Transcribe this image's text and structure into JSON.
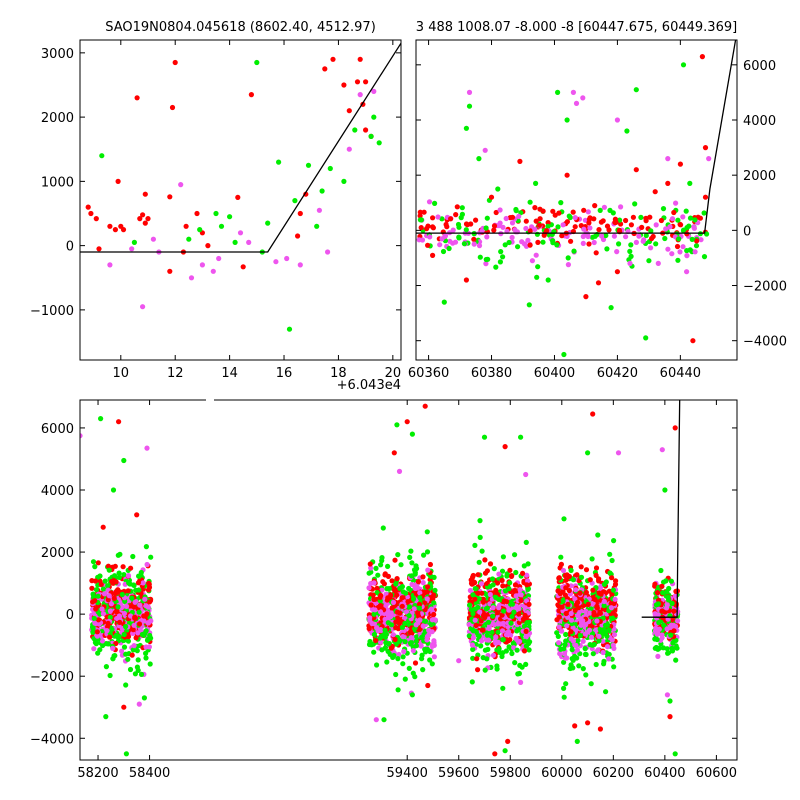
{
  "chart_data": [
    {
      "id": "top-left",
      "type": "scatter",
      "title": "SAO19N0804.045618 (8602.40, 4512.97)",
      "xlim": [
        8.5,
        20.3
      ],
      "ylim": [
        -1780,
        3200
      ],
      "x_offset_text": "+6.043e4",
      "x_ticks": [
        10,
        12,
        14,
        16,
        18,
        20
      ],
      "y_ticks": [
        -1000,
        0,
        1000,
        2000,
        3000
      ],
      "y_ticks_side": "left",
      "model_line": {
        "x": [
          8.5,
          15.4,
          20.3
        ],
        "y": [
          -100,
          -100,
          3150
        ]
      },
      "series": [
        {
          "color": "#ff0000",
          "points": [
            [
              8.8,
              600
            ],
            [
              8.9,
              500
            ],
            [
              9.1,
              420
            ],
            [
              9.2,
              -50
            ],
            [
              9.6,
              300
            ],
            [
              9.8,
              250
            ],
            [
              9.9,
              1000
            ],
            [
              10.0,
              300
            ],
            [
              10.1,
              250
            ],
            [
              10.6,
              2300
            ],
            [
              10.7,
              420
            ],
            [
              10.8,
              480
            ],
            [
              10.9,
              800
            ],
            [
              10.9,
              350
            ],
            [
              11.0,
              420
            ],
            [
              11.8,
              760
            ],
            [
              11.9,
              2150
            ],
            [
              12.0,
              2850
            ],
            [
              11.8,
              -400
            ],
            [
              12.3,
              -100
            ],
            [
              12.4,
              300
            ],
            [
              12.8,
              500
            ],
            [
              13.0,
              200
            ],
            [
              13.2,
              0
            ],
            [
              14.3,
              750
            ],
            [
              14.5,
              -330
            ],
            [
              14.8,
              2350
            ],
            [
              16.5,
              150
            ],
            [
              16.6,
              500
            ],
            [
              16.8,
              800
            ],
            [
              17.5,
              2750
            ],
            [
              17.8,
              2900
            ],
            [
              18.2,
              2500
            ],
            [
              18.4,
              2100
            ],
            [
              18.7,
              2550
            ],
            [
              18.9,
              2200
            ],
            [
              19.0,
              2550
            ],
            [
              18.8,
              2900
            ],
            [
              19.0,
              1800
            ],
            [
              19.2,
              1700
            ]
          ]
        },
        {
          "color": "#00ee00",
          "points": [
            [
              9.3,
              1400
            ],
            [
              10.5,
              50
            ],
            [
              12.5,
              100
            ],
            [
              12.9,
              250
            ],
            [
              13.5,
              500
            ],
            [
              13.7,
              300
            ],
            [
              14.0,
              450
            ],
            [
              14.2,
              50
            ],
            [
              15.0,
              2850
            ],
            [
              15.2,
              -100
            ],
            [
              15.4,
              350
            ],
            [
              15.8,
              1300
            ],
            [
              16.2,
              -1300
            ],
            [
              16.4,
              700
            ],
            [
              16.9,
              1250
            ],
            [
              17.2,
              300
            ],
            [
              17.4,
              850
            ],
            [
              17.7,
              1200
            ],
            [
              18.2,
              1000
            ],
            [
              18.6,
              1800
            ],
            [
              19.2,
              1700
            ],
            [
              19.3,
              2000
            ],
            [
              19.5,
              1600
            ]
          ]
        },
        {
          "color": "#ee55ee",
          "points": [
            [
              9.6,
              -300
            ],
            [
              10.4,
              -50
            ],
            [
              10.8,
              -950
            ],
            [
              11.2,
              100
            ],
            [
              12.2,
              950
            ],
            [
              13.0,
              -300
            ],
            [
              13.4,
              -400
            ],
            [
              13.6,
              -200
            ],
            [
              14.4,
              200
            ],
            [
              14.7,
              50
            ],
            [
              15.7,
              -250
            ],
            [
              16.1,
              -200
            ],
            [
              16.6,
              -300
            ],
            [
              17.3,
              550
            ],
            [
              17.6,
              -100
            ],
            [
              18.4,
              1500
            ],
            [
              18.8,
              2350
            ],
            [
              19.3,
              2400
            ],
            [
              12.6,
              -500
            ],
            [
              11.4,
              -100
            ]
          ]
        }
      ]
    },
    {
      "id": "top-right",
      "type": "scatter",
      "title": "3 488 1008.07 -8.000 -8 [60447.675, 60449.369]",
      "xlim": [
        60356,
        60458
      ],
      "ylim": [
        -4700,
        6900
      ],
      "x_ticks": [
        60360,
        60380,
        60400,
        60420,
        60440
      ],
      "y_ticks": [
        -4000,
        -2000,
        0,
        2000,
        4000,
        6000
      ],
      "y_ticks_side": "right",
      "model_line": {
        "x": [
          60356,
          60447.7,
          60449.4,
          60458
        ],
        "y": [
          -100,
          -100,
          1500,
          7200
        ]
      },
      "band": {
        "x_range": [
          60357,
          60449
        ],
        "colors": [
          "#ff0000",
          "#ee55ee",
          "#00ee00"
        ],
        "spread": 400,
        "count": 360
      },
      "series": [
        {
          "color": "#00ee00",
          "points": [
            [
              60365,
              -2600
            ],
            [
              60372,
              3700
            ],
            [
              60373,
              4500
            ],
            [
              60376,
              2600
            ],
            [
              60382,
              1500
            ],
            [
              60392,
              -2700
            ],
            [
              60394,
              1700
            ],
            [
              60398,
              -1800
            ],
            [
              60401,
              5000
            ],
            [
              60404,
              4000
            ],
            [
              60403,
              -4500
            ],
            [
              60418,
              -2800
            ],
            [
              60423,
              3600
            ],
            [
              60426,
              5100
            ],
            [
              60429,
              -3900
            ],
            [
              60430,
              -1100
            ],
            [
              60441,
              6000
            ],
            [
              60443,
              1700
            ]
          ]
        },
        {
          "color": "#ff0000",
          "points": [
            [
              60372,
              -1800
            ],
            [
              60380,
              1200
            ],
            [
              60389,
              2500
            ],
            [
              60404,
              2000
            ],
            [
              60410,
              -2400
            ],
            [
              60414,
              -1900
            ],
            [
              60420,
              -1500
            ],
            [
              60426,
              2200
            ],
            [
              60432,
              1400
            ],
            [
              60436,
              1700
            ],
            [
              60440,
              2400
            ],
            [
              60444,
              -4000
            ],
            [
              60447,
              6300
            ],
            [
              60448,
              1200
            ],
            [
              60448,
              3000
            ]
          ]
        },
        {
          "color": "#ee55ee",
          "points": [
            [
              60373,
              5000
            ],
            [
              60378,
              2900
            ],
            [
              60393,
              -1100
            ],
            [
              60406,
              5000
            ],
            [
              60407,
              4600
            ],
            [
              60409,
              4800
            ],
            [
              60420,
              4000
            ],
            [
              60424,
              -1200
            ],
            [
              60433,
              -1200
            ],
            [
              60436,
              2600
            ],
            [
              60442,
              -1500
            ],
            [
              60449,
              2600
            ]
          ]
        }
      ]
    },
    {
      "id": "bottom",
      "type": "scatter",
      "xlim": [
        58130,
        60680
      ],
      "ylim": [
        -4700,
        6900
      ],
      "x_ticks": [
        58200,
        58400,
        59400,
        59600,
        59800,
        60000,
        60200,
        60400,
        60600
      ],
      "y_ticks": [
        -4000,
        -2000,
        0,
        2000,
        4000,
        6000
      ],
      "y_ticks_side": "left",
      "model_line": {
        "x": [
          60310,
          60447.7,
          60449.4,
          60458
        ],
        "y": [
          -100,
          -100,
          1500,
          7200
        ]
      },
      "bands": [
        {
          "x_range": [
            58175,
            58405
          ],
          "spread": 550,
          "count": 700
        },
        {
          "x_range": [
            59250,
            59510
          ],
          "spread": 550,
          "count": 760
        },
        {
          "x_range": [
            59640,
            59875
          ],
          "spread": 550,
          "count": 700
        },
        {
          "x_range": [
            59980,
            60210
          ],
          "spread": 550,
          "count": 700
        },
        {
          "x_range": [
            60360,
            60450
          ],
          "spread": 450,
          "count": 300
        }
      ],
      "band_colors": [
        "#ff0000",
        "#ee55ee",
        "#00ee00"
      ],
      "series": [
        {
          "color": "#00ee00",
          "points": [
            [
              58210,
              6300
            ],
            [
              58260,
              4000
            ],
            [
              58300,
              4950
            ],
            [
              58310,
              -4500
            ],
            [
              58230,
              -3300
            ],
            [
              58380,
              -2700
            ],
            [
              59360,
              6100
            ],
            [
              59420,
              5800
            ],
            [
              59310,
              -3400
            ],
            [
              59420,
              -2600
            ],
            [
              59700,
              5700
            ],
            [
              59780,
              -4400
            ],
            [
              59840,
              5700
            ],
            [
              60060,
              -4100
            ],
            [
              60100,
              5200
            ],
            [
              60170,
              -2500
            ],
            [
              60400,
              4000
            ],
            [
              60440,
              -4500
            ],
            [
              60420,
              -2800
            ]
          ]
        },
        {
          "color": "#ff0000",
          "points": [
            [
              58280,
              6200
            ],
            [
              58220,
              2800
            ],
            [
              58350,
              3200
            ],
            [
              58300,
              -3000
            ],
            [
              59400,
              6200
            ],
            [
              59470,
              6700
            ],
            [
              59350,
              5200
            ],
            [
              59480,
              -2300
            ],
            [
              59780,
              5400
            ],
            [
              59740,
              -4500
            ],
            [
              59790,
              -4100
            ],
            [
              60050,
              -3600
            ],
            [
              60120,
              6450
            ],
            [
              60100,
              -3500
            ],
            [
              60150,
              -3700
            ],
            [
              60440,
              6000
            ],
            [
              60420,
              -3300
            ]
          ]
        },
        {
          "color": "#ee55ee",
          "points": [
            [
              58130,
              5750
            ],
            [
              58390,
              5350
            ],
            [
              58360,
              -2900
            ],
            [
              59370,
              4600
            ],
            [
              59280,
              -3400
            ],
            [
              59600,
              -1500
            ],
            [
              59860,
              4500
            ],
            [
              59840,
              -2200
            ],
            [
              60220,
              5200
            ],
            [
              60200,
              -1000
            ],
            [
              60390,
              5300
            ],
            [
              60410,
              -2600
            ]
          ]
        }
      ]
    }
  ]
}
